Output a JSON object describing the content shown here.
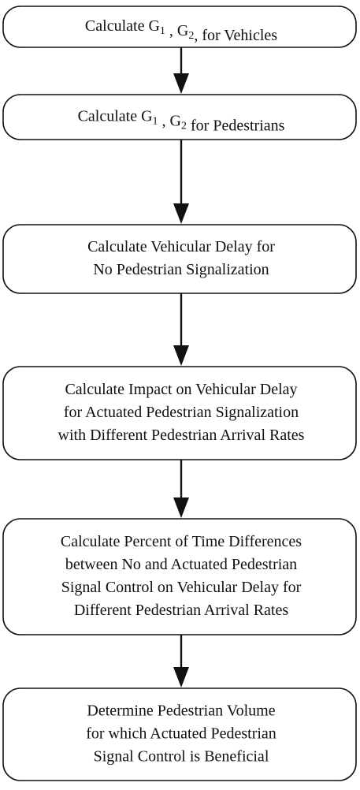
{
  "nodes": [
    {
      "lines": [
        [
          {
            "text": "Calculate G"
          },
          {
            "sub": "1"
          },
          {
            "text": " , G"
          },
          {
            "sub": "2"
          },
          {
            "text": ",  for Vehicles"
          }
        ]
      ]
    },
    {
      "lines": [
        [
          {
            "text": "Calculate G"
          },
          {
            "sub": "1"
          },
          {
            "text": " , G"
          },
          {
            "sub": "2"
          },
          {
            "text": "  for Pedestrians"
          }
        ]
      ]
    },
    {
      "lines": [
        [
          {
            "text": "Calculate Vehicular Delay for"
          }
        ],
        [
          {
            "text": "No Pedestrian Signalization"
          }
        ]
      ]
    },
    {
      "lines": [
        [
          {
            "text": "Calculate Impact on Vehicular Delay"
          }
        ],
        [
          {
            "text": "for Actuated Pedestrian Signalization"
          }
        ],
        [
          {
            "text": "with Different Pedestrian Arrival Rates"
          }
        ]
      ]
    },
    {
      "lines": [
        [
          {
            "text": "Calculate Percent of Time Differences"
          }
        ],
        [
          {
            "text": "between No and Actuated Pedestrian"
          }
        ],
        [
          {
            "text": "Signal Control on Vehicular Delay for"
          }
        ],
        [
          {
            "text": "Different Pedestrian Arrival Rates"
          }
        ]
      ]
    },
    {
      "lines": [
        [
          {
            "text": "Determine Pedestrian Volume"
          }
        ],
        [
          {
            "text": "for which Actuated Pedestrian"
          }
        ],
        [
          {
            "text": "Signal Control is Beneficial"
          }
        ]
      ]
    }
  ]
}
